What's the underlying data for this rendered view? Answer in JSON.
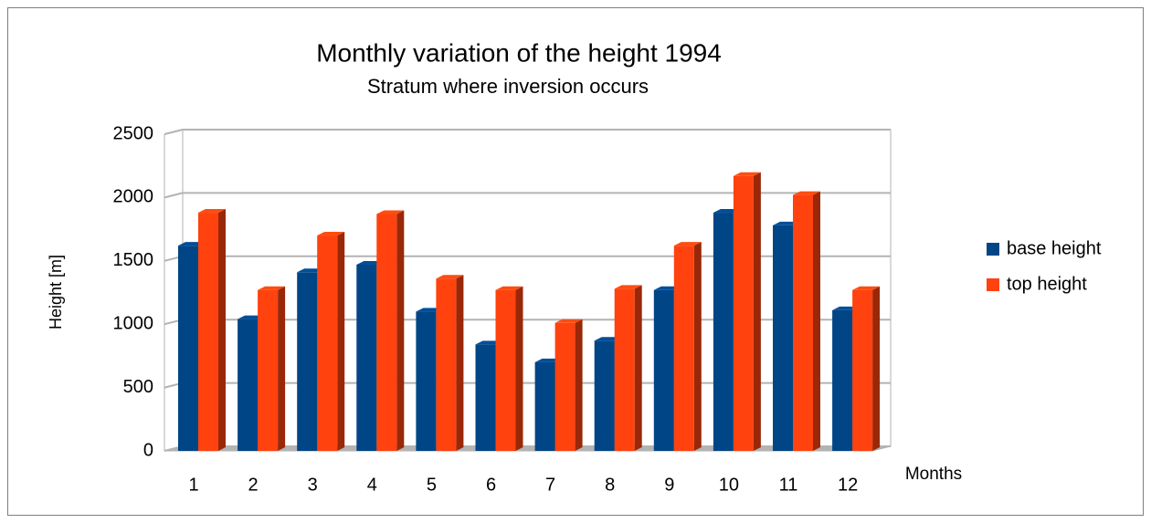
{
  "chart_data": {
    "type": "bar3d",
    "title": "Monthly variation of the height 1994",
    "subtitle": "Stratum where inversion occurs",
    "y_label": "Height [m]",
    "x_label": "Months",
    "categories": [
      "1",
      "2",
      "3",
      "4",
      "5",
      "6",
      "7",
      "8",
      "9",
      "10",
      "11",
      "12"
    ],
    "series": [
      {
        "name": "base height",
        "color": "#004586",
        "values": [
          1620,
          1040,
          1410,
          1470,
          1100,
          840,
          700,
          870,
          1270,
          1880,
          1780,
          1110
        ]
      },
      {
        "name": "top height",
        "color": "#ff420e",
        "values": [
          1880,
          1270,
          1700,
          1870,
          1360,
          1270,
          1010,
          1280,
          1620,
          2170,
          2020,
          1270
        ]
      }
    ],
    "ylim": [
      0,
      2500
    ],
    "yticks": [
      0,
      500,
      1000,
      1500,
      2000,
      2500
    ],
    "grid": true,
    "legend": "right"
  }
}
